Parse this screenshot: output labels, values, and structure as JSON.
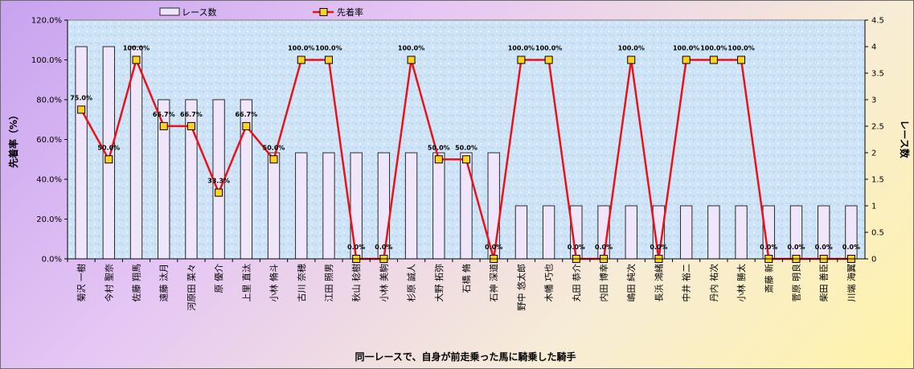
{
  "chart_data": {
    "type": "bar",
    "title": "",
    "xlabel": "同一レースで、自身が前走乗った馬に騎乗した騎手",
    "ylabel": "先着率（%）",
    "y2label": "レース数",
    "ylim": [
      0,
      120
    ],
    "y2lim": [
      0,
      4.5
    ],
    "yticks": [
      "0.0%",
      "20.0%",
      "40.0%",
      "60.0%",
      "80.0%",
      "100.0%",
      "120.0%"
    ],
    "y2ticks": [
      "0",
      "0.5",
      "1",
      "1.5",
      "2",
      "2.5",
      "3",
      "3.5",
      "4",
      "4.5"
    ],
    "legend_position": "top",
    "grid": false,
    "categories": [
      "菊沢 一樹",
      "今村 聖奈",
      "佐藤 翔馬",
      "遠藤 汰月",
      "河原田 菜々",
      "原 優介",
      "上里 直汰",
      "小林 脩斗",
      "古川 奈穂",
      "江田 照男",
      "秋山 稔樹",
      "小林 美駒",
      "杉原 誠人",
      "大野 拓弥",
      "石橋 脩",
      "石神 深道",
      "野中 悠太郎",
      "木幡 巧也",
      "丸田 恭介",
      "内田 博幸",
      "嶋田 純次",
      "長浜 鴻緒",
      "中井 裕二",
      "丹内 祐次",
      "小林 勝太",
      "斎藤 新",
      "菅原 明良",
      "柴田 善臣",
      "川端 海翼"
    ],
    "series": [
      {
        "name": "レース数",
        "type": "bar",
        "axis": "right",
        "values": [
          4,
          4,
          4,
          3,
          3,
          3,
          3,
          2,
          2,
          2,
          2,
          2,
          2,
          2,
          2,
          2,
          1,
          1,
          1,
          1,
          1,
          1,
          1,
          1,
          1,
          1,
          1,
          1,
          1
        ]
      },
      {
        "name": "先着率",
        "type": "line",
        "axis": "left",
        "values": [
          75,
          50,
          100,
          66.7,
          66.7,
          33.3,
          66.7,
          50,
          100,
          100,
          0,
          0,
          100,
          50,
          50,
          0,
          100,
          100,
          0,
          0,
          100,
          0,
          100,
          100,
          100,
          0,
          0,
          0,
          0
        ],
        "labels": [
          "75.0%",
          "50.0%",
          "100.0%",
          "66.7%",
          "66.7%",
          "33.3%",
          "66.7%",
          "50.0%",
          "100.0%",
          "100.0%",
          "0.0%",
          "0.0%",
          "100.0%",
          "50.0%",
          "50.0%",
          "0.0%",
          "100.0%",
          "100.0%",
          "0.0%",
          "0.0%",
          "100.0%",
          "0.0%",
          "100.0%",
          "100.0%",
          "100.0%",
          "0.0%",
          "0.0%",
          "0.0%",
          "0.0%"
        ]
      }
    ],
    "colors": {
      "bar_fill": "#efe6fb",
      "bar_stroke": "#2a2a2a",
      "line": "#e8121b",
      "marker_fill": "#ffd21f",
      "marker_stroke": "#000000",
      "plot_bg": "#cfe5f7"
    }
  }
}
